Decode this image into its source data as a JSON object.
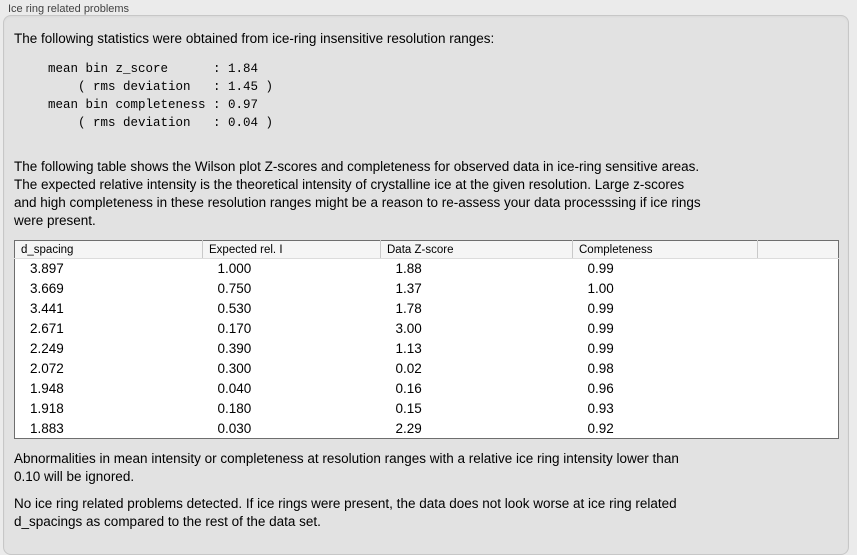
{
  "window": {
    "title": "Ice ring related problems"
  },
  "panel": {
    "intro": "The following statistics were obtained from ice-ring insensitive resolution ranges:",
    "stats_block": "mean bin z_score      : 1.84\n    ( rms deviation   : 1.45 )\nmean bin completeness : 0.97\n    ( rms deviation   : 0.04 )",
    "table_description": "The following table shows the Wilson plot Z-scores and completeness for observed data in ice-ring sensitive areas.\nThe expected relative intensity is the theoretical intensity of crystalline ice at the given resolution. Large z-scores\nand high completeness in these resolution ranges might be a reason to re-assess your data processsing if ice rings\nwere present.",
    "note_ignore": "Abnormalities in mean intensity or completeness at resolution ranges with a relative ice ring intensity lower than\n0.10 will be ignored.",
    "conclusion": "No ice ring related problems detected. If ice rings were present, the data does not look worse at ice ring related\nd_spacings as compared to the rest of the data set."
  },
  "table": {
    "headers": [
      "d_spacing",
      "Expected rel. I",
      "Data Z-score",
      "Completeness"
    ],
    "rows": [
      [
        "3.897",
        "1.000",
        "1.88",
        "0.99"
      ],
      [
        "3.669",
        "0.750",
        "1.37",
        "1.00"
      ],
      [
        "3.441",
        "0.530",
        "1.78",
        "0.99"
      ],
      [
        "2.671",
        "0.170",
        "3.00",
        "0.99"
      ],
      [
        "2.249",
        "0.390",
        "1.13",
        "0.99"
      ],
      [
        "2.072",
        "0.300",
        "0.02",
        "0.98"
      ],
      [
        "1.948",
        "0.040",
        "0.16",
        "0.96"
      ],
      [
        "1.918",
        "0.180",
        "0.15",
        "0.93"
      ],
      [
        "1.883",
        "0.030",
        "2.29",
        "0.92"
      ]
    ]
  },
  "colors": {
    "outer_bg": "#ebebeb",
    "panel_bg": "#e2e2e2",
    "panel_border": "#c7c7c7",
    "title_color": "#424242",
    "table_border": "#6e6e6e",
    "table_header_bg": "#f5f5f5",
    "header_divider": "#c9c9c9"
  }
}
